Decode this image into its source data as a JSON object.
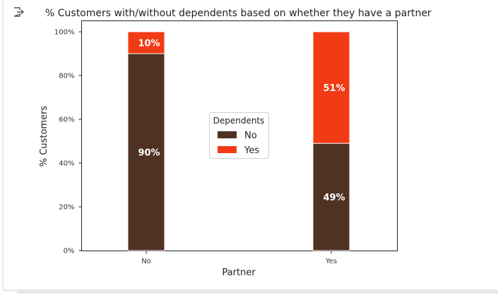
{
  "chart_data": {
    "type": "bar",
    "stacked": true,
    "title": "% Customers with/without dependents based on whether they have a partner",
    "xlabel": "Partner",
    "ylabel": "% Customers",
    "categories": [
      "No",
      "Yes"
    ],
    "series": [
      {
        "name": "No",
        "values": [
          90,
          49
        ],
        "labels": [
          "90%",
          "49%"
        ],
        "color": "#4f3222"
      },
      {
        "name": "Yes",
        "values": [
          10,
          51
        ],
        "labels": [
          "10%",
          "51%"
        ],
        "color": "#f23a15"
      }
    ],
    "ylim": [
      0,
      100
    ],
    "yticks": [
      0,
      20,
      40,
      60,
      80,
      100
    ],
    "ytick_labels": [
      "0%",
      "20%",
      "40%",
      "60%",
      "80%",
      "100%"
    ],
    "legend": {
      "title": "Dependents",
      "placement": "center"
    },
    "grid": false
  },
  "icons": {
    "output": "output-arrow-icon"
  }
}
